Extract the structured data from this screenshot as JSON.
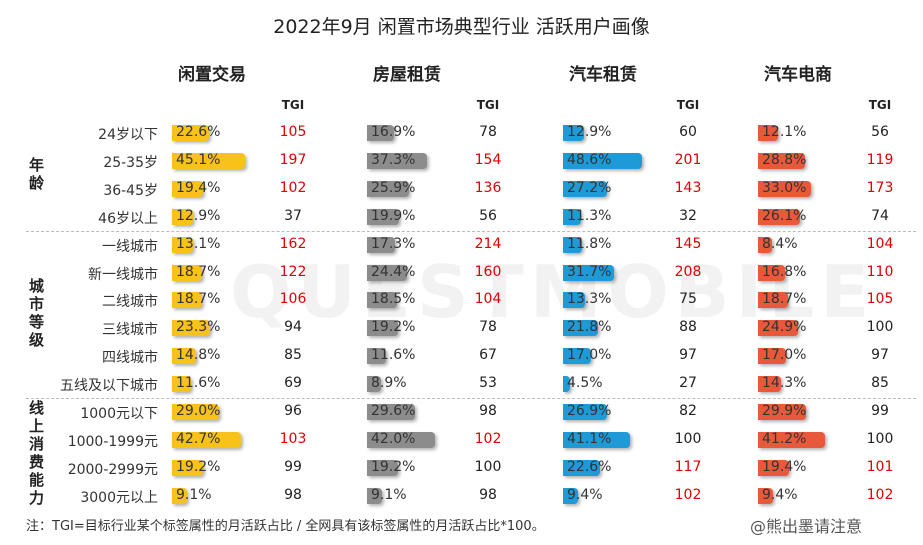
{
  "title": "2022年9月 闲置市场典型行业 活跃用户画像",
  "tgi_header": "TGI",
  "groups": [
    {
      "label": "年龄",
      "rows": [
        "24岁以下",
        "25-35岁",
        "36-45岁",
        "46岁以上"
      ]
    },
    {
      "label": "城市等级",
      "rows": [
        "一线城市",
        "新一线城市",
        "二线城市",
        "三线城市",
        "四线城市",
        "五线及以下城市"
      ]
    },
    {
      "label": "线上消费能力",
      "rows": [
        "1000元以下",
        "1000-1999元",
        "2000-2999元",
        "3000元以上"
      ]
    }
  ],
  "columns": [
    {
      "name": "闲置交易",
      "color": "#f7c21a",
      "values": [
        22.6,
        45.1,
        19.4,
        12.9,
        13.1,
        18.7,
        18.7,
        23.3,
        14.8,
        11.6,
        29.0,
        42.7,
        19.2,
        9.1
      ],
      "value_labels": [
        "22.6%",
        "45.1%",
        "19.4%",
        "12.9%",
        "13.1%",
        "18.7%",
        "18.7%",
        "23.3%",
        "14.8%",
        "11.6%",
        "29.0%",
        "42.7%",
        "19.2%",
        "9.1%"
      ],
      "tgi": [
        105,
        197,
        102,
        37,
        162,
        122,
        106,
        94,
        85,
        69,
        96,
        103,
        99,
        98
      ]
    },
    {
      "name": "房屋租赁",
      "color": "#8c8c8c",
      "values": [
        16.9,
        37.3,
        25.9,
        19.9,
        17.3,
        24.4,
        18.5,
        19.2,
        11.6,
        8.9,
        29.6,
        42.0,
        19.2,
        9.1
      ],
      "value_labels": [
        "16.9%",
        "37.3%",
        "25.9%",
        "19.9%",
        "17.3%",
        "24.4%",
        "18.5%",
        "19.2%",
        "11.6%",
        "8.9%",
        "29.6%",
        "42.0%",
        "19.2%",
        "9.1%"
      ],
      "tgi": [
        78,
        154,
        136,
        56,
        214,
        160,
        104,
        78,
        67,
        53,
        98,
        102,
        100,
        98
      ]
    },
    {
      "name": "汽车租赁",
      "color": "#1e9bd7",
      "values": [
        12.9,
        48.6,
        27.2,
        11.3,
        11.8,
        31.7,
        13.3,
        21.8,
        17.0,
        4.5,
        26.9,
        41.1,
        22.6,
        9.4
      ],
      "value_labels": [
        "12.9%",
        "48.6%",
        "27.2%",
        "11.3%",
        "11.8%",
        "31.7%",
        "13.3%",
        "21.8%",
        "17.0%",
        "4.5%",
        "26.9%",
        "41.1%",
        "22.6%",
        "9.4%"
      ],
      "tgi": [
        60,
        201,
        143,
        32,
        145,
        208,
        75,
        88,
        97,
        27,
        82,
        100,
        117,
        102
      ]
    },
    {
      "name": "汽车电商",
      "color": "#e8593c",
      "values": [
        12.1,
        28.8,
        33.0,
        26.1,
        8.4,
        16.8,
        18.7,
        24.9,
        17.0,
        14.3,
        29.9,
        41.2,
        19.4,
        9.4
      ],
      "value_labels": [
        "12.1%",
        "28.8%",
        "33.0%",
        "26.1%",
        "8.4%",
        "16.8%",
        "18.7%",
        "24.9%",
        "17.0%",
        "14.3%",
        "29.9%",
        "41.2%",
        "19.4%",
        "9.4%"
      ],
      "tgi": [
        56,
        119,
        173,
        74,
        104,
        110,
        105,
        100,
        97,
        85,
        99,
        100,
        101,
        102
      ]
    }
  ],
  "footnote": "注：TGI=目标行业某个标签属性的月活跃占比 / 全网具有该标签属性的月活跃占比*100。",
  "watermark": "QUESTMOBILE",
  "credit": "@熊出墨请注意"
}
